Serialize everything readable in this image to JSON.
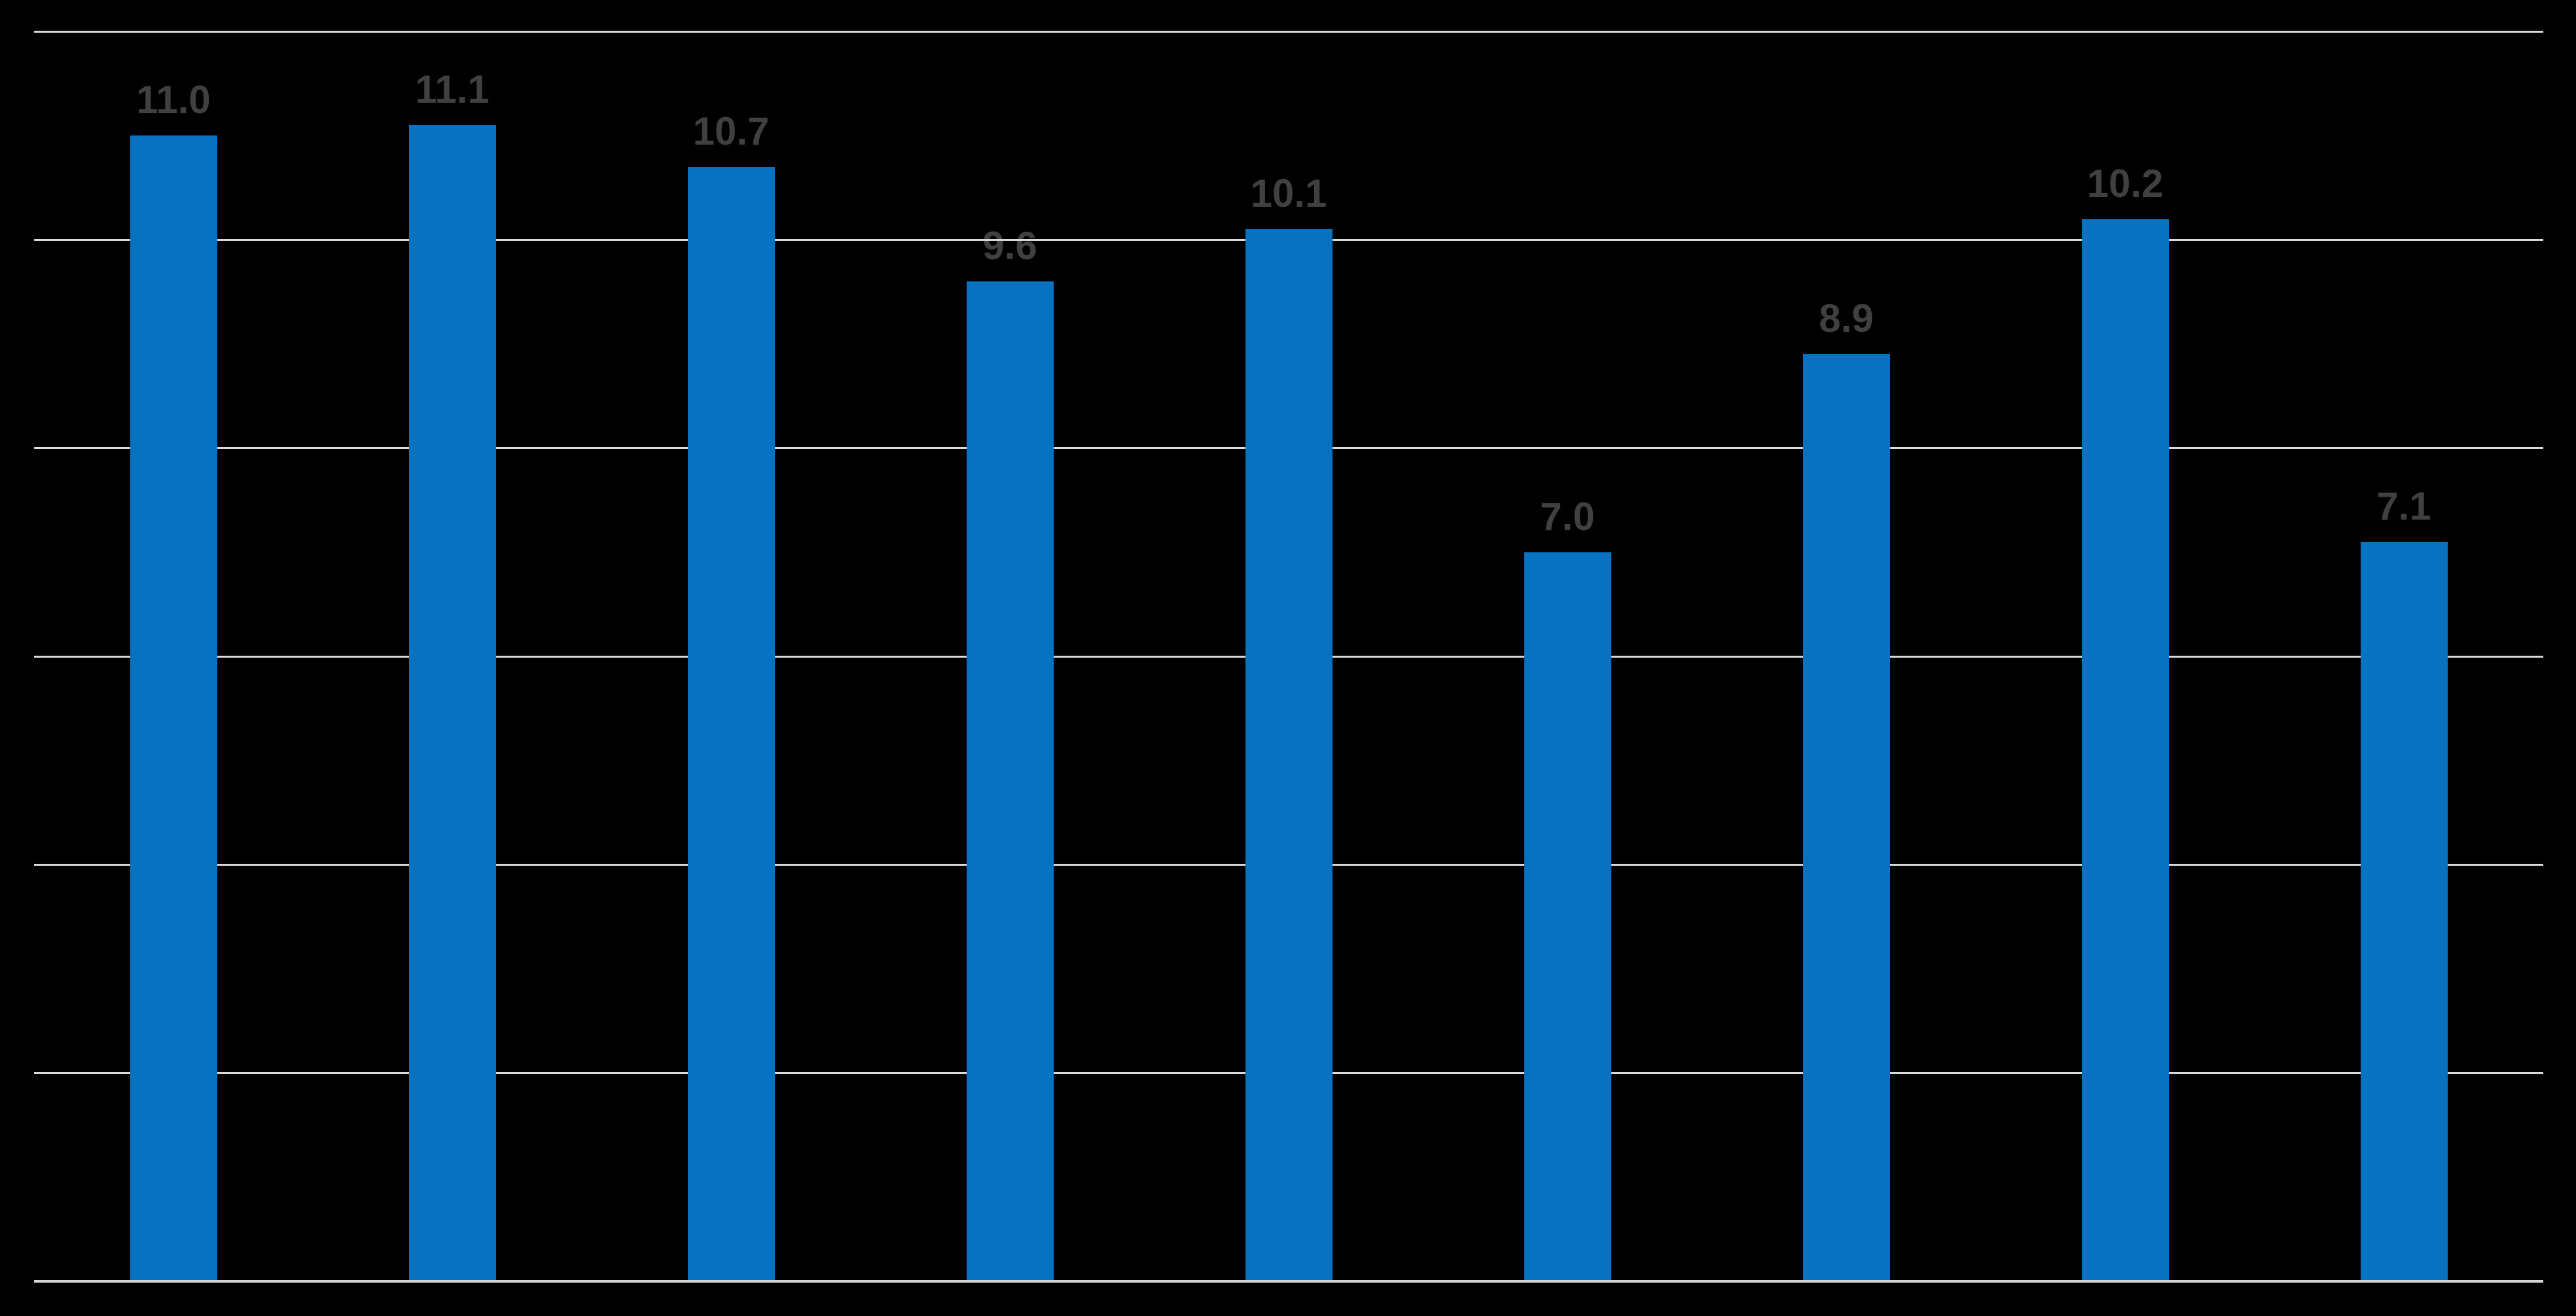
{
  "chart": {
    "background_color": "#000000",
    "bar_color": "#0872c2",
    "gridline_color": "#d9d9d9",
    "axis_line_color": "#d6d6d6",
    "data_label_color": "#404040"
  },
  "chart_data": {
    "type": "bar",
    "title": "",
    "xlabel": "",
    "ylabel": "",
    "categories": [
      "",
      "",
      "",
      "",
      "",
      "",
      "",
      "",
      ""
    ],
    "values": [
      11.0,
      11.1,
      10.7,
      9.6,
      10.1,
      7.0,
      8.9,
      10.2,
      7.1
    ],
    "data_labels": [
      "11.0",
      "11.1",
      "10.7",
      "9.6",
      "10.1",
      "7.0",
      "8.9",
      "10.2",
      "7.1"
    ],
    "ylim": [
      0,
      12
    ],
    "gridline_step": 2,
    "grid": true,
    "legend": false,
    "axis_tick_labels_visible": false,
    "data_labels_position": "above-bar"
  }
}
